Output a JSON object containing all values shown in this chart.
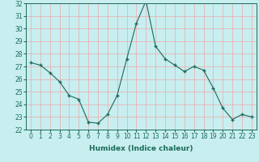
{
  "x": [
    0,
    1,
    2,
    3,
    4,
    5,
    6,
    7,
    8,
    9,
    10,
    11,
    12,
    13,
    14,
    15,
    16,
    17,
    18,
    19,
    20,
    21,
    22,
    23
  ],
  "y": [
    27.3,
    27.1,
    26.5,
    25.8,
    24.7,
    24.4,
    22.6,
    22.5,
    23.2,
    24.7,
    27.6,
    30.4,
    32.2,
    28.6,
    27.6,
    27.1,
    26.6,
    27.0,
    26.7,
    25.3,
    23.7,
    22.8,
    23.2,
    23.0
  ],
  "line_color": "#1a6b5a",
  "bg_color": "#c8eef0",
  "grid_color": "#f0a8a8",
  "xlabel": "Humidex (Indice chaleur)",
  "ylim": [
    22,
    32
  ],
  "yticks": [
    22,
    23,
    24,
    25,
    26,
    27,
    28,
    29,
    30,
    31,
    32
  ],
  "xticks": [
    0,
    1,
    2,
    3,
    4,
    5,
    6,
    7,
    8,
    9,
    10,
    11,
    12,
    13,
    14,
    15,
    16,
    17,
    18,
    19,
    20,
    21,
    22,
    23
  ],
  "tick_fontsize": 5.5,
  "label_fontsize": 6.5
}
